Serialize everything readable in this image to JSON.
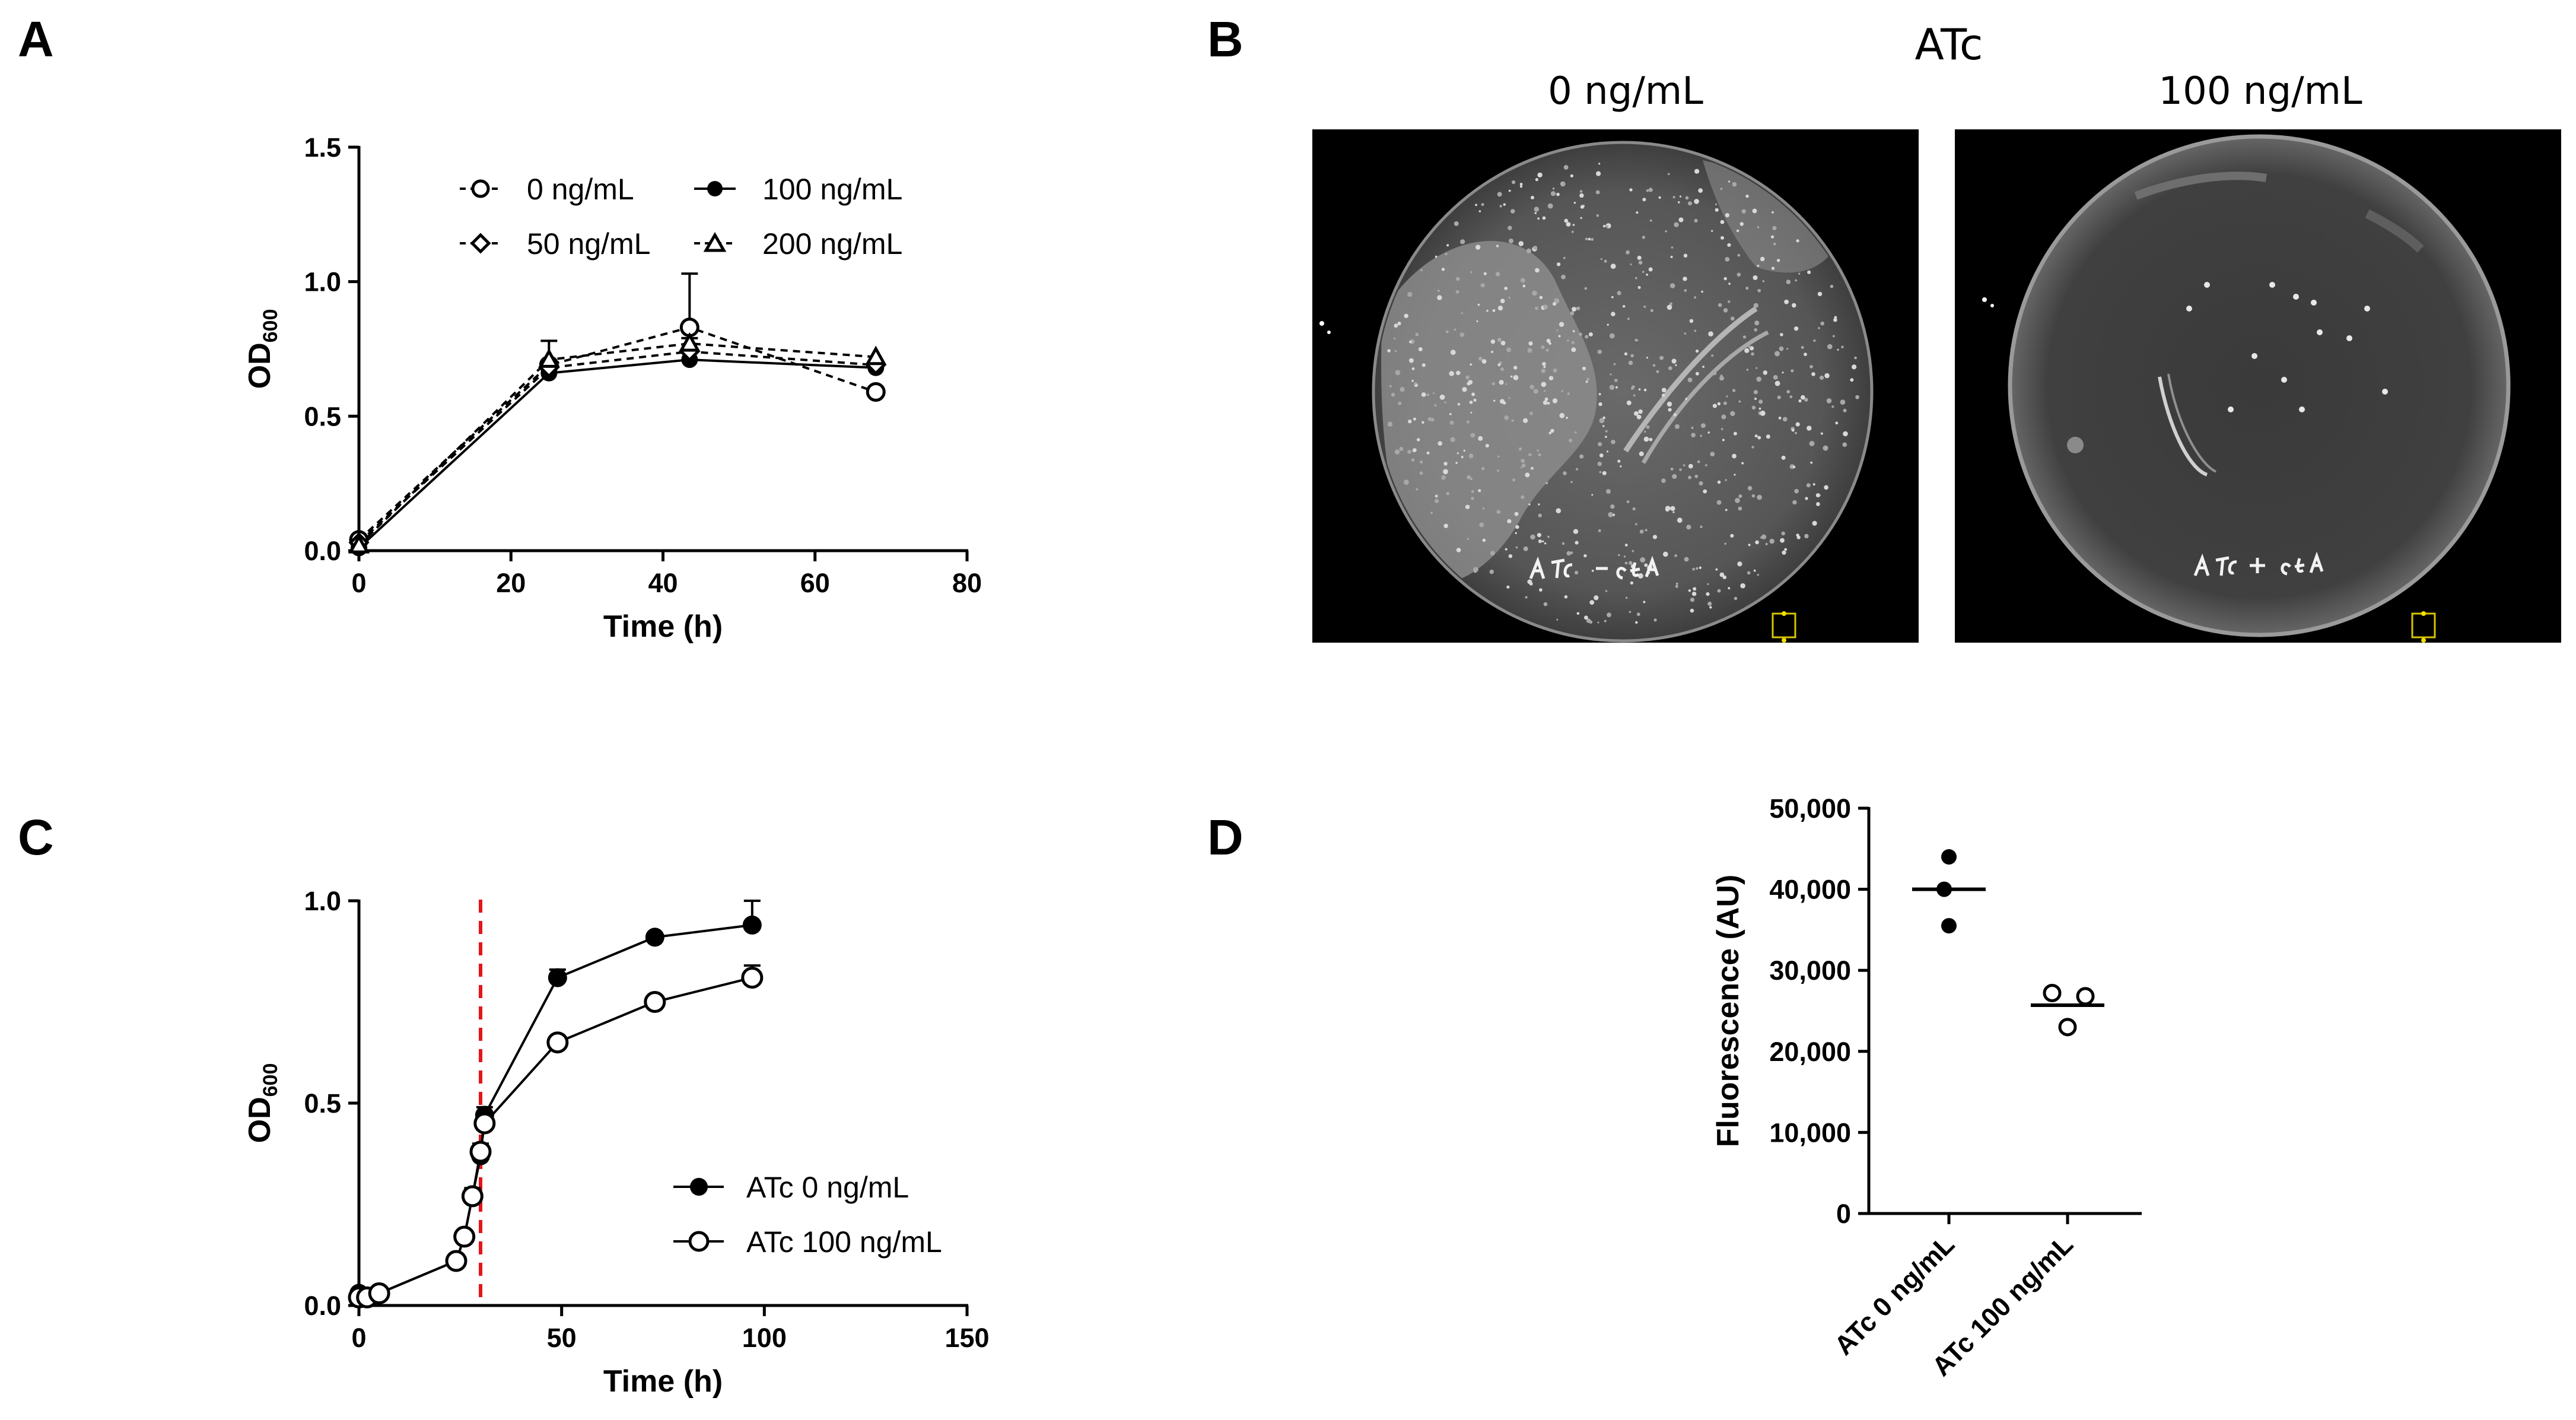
{
  "panels": {
    "A": "A",
    "B": "B",
    "C": "C",
    "D": "D"
  },
  "chart_data": [
    {
      "panel": "A",
      "type": "line",
      "xlabel": "Time (h)",
      "ylabel": "OD",
      "ylabel_sub": "600",
      "xlim": [
        0,
        80
      ],
      "ylim": [
        0,
        1.5
      ],
      "xticks": [
        0,
        20,
        40,
        60,
        80
      ],
      "yticks": [
        "0.0",
        "0.5",
        "1.0",
        "1.5"
      ],
      "legend_position": "top-right",
      "series": [
        {
          "name": "0 ng/mL",
          "marker": "circle-open",
          "line": "dashed",
          "x": [
            0,
            25,
            43.5,
            68
          ],
          "y": [
            0.04,
            0.69,
            0.83,
            0.59
          ],
          "err": [
            0,
            0,
            0.2,
            0
          ]
        },
        {
          "name": "100 ng/mL",
          "marker": "circle-filled",
          "line": "solid",
          "x": [
            0,
            25,
            43.5,
            68
          ],
          "y": [
            0.01,
            0.66,
            0.71,
            0.68
          ],
          "err": [
            0,
            0,
            0.08,
            0
          ]
        },
        {
          "name": "50 ng/mL",
          "marker": "diamond-open",
          "line": "dashed",
          "x": [
            0,
            25,
            43.5,
            68
          ],
          "y": [
            0.03,
            0.68,
            0.74,
            0.69
          ],
          "err": [
            0,
            0,
            0,
            0
          ]
        },
        {
          "name": "200 ng/mL",
          "marker": "triangle-open",
          "line": "dashed",
          "x": [
            0,
            25,
            43.5,
            68
          ],
          "y": [
            0.02,
            0.71,
            0.77,
            0.72
          ],
          "err": [
            0,
            0.07,
            0,
            0
          ]
        }
      ]
    },
    {
      "panel": "C",
      "type": "line",
      "xlabel": "Time (h)",
      "ylabel": "OD",
      "ylabel_sub": "600",
      "xlim": [
        0,
        150
      ],
      "ylim": [
        0,
        1.0
      ],
      "xticks": [
        0,
        50,
        100,
        150
      ],
      "yticks": [
        "0.0",
        "0.5",
        "1.0"
      ],
      "vline_x": 30,
      "vline_color": "#e4161b",
      "legend_position": "right",
      "series": [
        {
          "name": "ATc 0 ng/mL",
          "marker": "circle-filled",
          "line": "solid",
          "x": [
            0,
            2,
            5,
            24,
            26,
            28,
            30,
            31,
            49,
            73,
            97
          ],
          "y": [
            0.03,
            0.02,
            0.03,
            0.11,
            0.17,
            0.27,
            0.37,
            0.47,
            0.81,
            0.91,
            0.94
          ],
          "err": [
            0,
            0,
            0,
            0,
            0,
            0.02,
            0.03,
            0.02,
            0.02,
            0,
            0.06
          ]
        },
        {
          "name": "ATc 100 ng/mL",
          "marker": "circle-open",
          "line": "solid",
          "x": [
            0,
            2,
            5,
            24,
            26,
            28,
            30,
            31,
            49,
            73,
            97
          ],
          "y": [
            0.02,
            0.02,
            0.03,
            0.11,
            0.17,
            0.27,
            0.38,
            0.45,
            0.65,
            0.75,
            0.81
          ],
          "err": [
            0,
            0,
            0,
            0,
            0,
            0,
            0,
            0.02,
            0,
            0,
            0.03
          ]
        }
      ]
    },
    {
      "panel": "D",
      "type": "scatter",
      "ylabel": "Fluorescence (AU)",
      "ylim": [
        0,
        50000
      ],
      "yticks": [
        "0",
        "10,000",
        "20,000",
        "30,000",
        "40,000",
        "50,000"
      ],
      "categories": [
        "ATc 0 ng/mL",
        "ATc 100 ng/mL"
      ],
      "groups": [
        {
          "category": "ATc 0 ng/mL",
          "marker": "circle-filled",
          "points": [
            44000,
            40000,
            35500
          ],
          "mean": 40000
        },
        {
          "category": "ATc 100 ng/mL",
          "marker": "circle-open",
          "points": [
            27200,
            26800,
            23000
          ],
          "mean": 25700
        }
      ]
    }
  ],
  "plates": {
    "title": "ATc",
    "left_label": "0 ng/mL",
    "right_label": "100 ng/mL",
    "left_handwriting": "ATc − EcTA",
    "right_handwriting": "ATc + EcTA"
  }
}
